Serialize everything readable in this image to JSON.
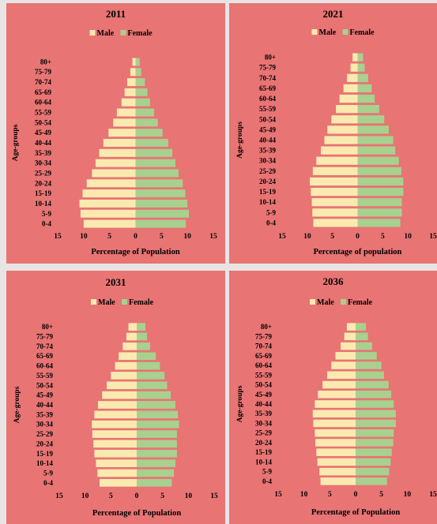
{
  "colors": {
    "male": "#fbeab0",
    "female": "#a8d08f",
    "background": "#e87474"
  },
  "chart_data": [
    {
      "type": "bar",
      "orientation": "horizontal-population-pyramid",
      "title": "2011",
      "xlabel": "Percentage of Population",
      "ylabel": "Age-groups",
      "legend": [
        "Male",
        "Female"
      ],
      "legend_position": "top",
      "xlim": [
        -15,
        15
      ],
      "xticks": [
        "15",
        "10",
        "5",
        "0",
        "5",
        "10",
        "15"
      ],
      "categories": [
        "0-4",
        "5-9",
        "10-14",
        "15-19",
        "20-24",
        "25-29",
        "30-34",
        "35-39",
        "40-44",
        "45-49",
        "50-54",
        "55-59",
        "60-64",
        "65-69",
        "70-74",
        "75-79",
        "80+"
      ],
      "series": [
        {
          "name": "Male",
          "values": [
            10.0,
            10.6,
            10.8,
            10.2,
            9.4,
            8.4,
            7.7,
            7.0,
            6.2,
            5.2,
            4.3,
            3.6,
            2.7,
            2.1,
            1.6,
            1.0,
            0.6
          ]
        },
        {
          "name": "Female",
          "values": [
            9.7,
            10.3,
            10.0,
            9.6,
            9.1,
            8.3,
            7.7,
            7.1,
            6.3,
            5.2,
            4.3,
            3.6,
            2.8,
            2.3,
            1.8,
            1.1,
            0.8
          ]
        }
      ]
    },
    {
      "type": "bar",
      "orientation": "horizontal-population-pyramid",
      "title": "2021",
      "xlabel": "Percentage of population",
      "ylabel": "Age-groups",
      "legend": [
        "Male",
        "Female"
      ],
      "legend_position": "top",
      "xlim": [
        -15,
        15
      ],
      "xticks": [
        "15",
        "10",
        "5",
        "0",
        "5",
        "10",
        "15"
      ],
      "categories": [
        "0-4",
        "5-9",
        "10-14",
        "15-19",
        "20-24",
        "25-29",
        "30-34",
        "35-39",
        "40-44",
        "45-49",
        "50-54",
        "55-59",
        "60-64",
        "65-69",
        "70-74",
        "75-79",
        "80+"
      ],
      "series": [
        {
          "name": "Male",
          "values": [
            8.8,
            9.0,
            9.1,
            9.3,
            9.5,
            8.9,
            8.2,
            7.3,
            6.6,
            6.0,
            5.2,
            4.3,
            3.6,
            2.8,
            2.1,
            1.4,
            1.0
          ]
        },
        {
          "name": "Female",
          "values": [
            8.5,
            8.8,
            8.8,
            9.1,
            9.1,
            8.7,
            8.2,
            7.5,
            7.1,
            6.2,
            5.3,
            4.3,
            3.4,
            2.8,
            2.1,
            1.4,
            1.1
          ]
        }
      ]
    },
    {
      "type": "bar",
      "orientation": "horizontal-population-pyramid",
      "title": "2031",
      "xlabel": "Percentage of Population",
      "ylabel": "Age-groups",
      "legend": [
        "Male",
        "Female"
      ],
      "legend_position": "top",
      "xlim": [
        -15,
        15
      ],
      "xticks": [
        "15",
        "10",
        "5",
        "0",
        "5",
        "10",
        "15"
      ],
      "categories": [
        "0-4",
        "5-9",
        "10-14",
        "15-19",
        "20-24",
        "25-29",
        "30-34",
        "35-39",
        "40-44",
        "45-49",
        "50-54",
        "55-59",
        "60-64",
        "65-69",
        "70-74",
        "75-79",
        "80+"
      ],
      "series": [
        {
          "name": "Male",
          "values": [
            7.2,
            7.6,
            7.9,
            8.2,
            8.4,
            8.6,
            8.7,
            8.2,
            7.5,
            6.7,
            5.8,
            5.0,
            4.2,
            3.5,
            2.7,
            2.0,
            1.6
          ]
        },
        {
          "name": "Female",
          "values": [
            6.8,
            7.2,
            7.5,
            7.8,
            7.8,
            7.8,
            8.2,
            8.0,
            7.5,
            6.6,
            5.9,
            5.4,
            4.5,
            3.7,
            2.6,
            2.0,
            1.7
          ]
        }
      ]
    },
    {
      "type": "bar",
      "orientation": "horizontal-population-pyramid",
      "title": "2036",
      "xlabel": "Percentage of Population",
      "ylabel": "Age-groups",
      "legend": [
        "Male",
        "Female"
      ],
      "legend_position": "top",
      "xlim": [
        -15,
        15
      ],
      "xticks": [
        "15",
        "10",
        "5",
        "0",
        "5",
        "10",
        "15"
      ],
      "categories": [
        "0-4",
        "5-9",
        "10-14",
        "15-19",
        "20-24",
        "25-29",
        "30-34",
        "35-39",
        "40-44",
        "45-49",
        "50-54",
        "55-59",
        "60-64",
        "65-69",
        "70-74",
        "75-79",
        "80+"
      ],
      "series": [
        {
          "name": "Male",
          "values": [
            6.8,
            7.0,
            7.4,
            7.6,
            7.8,
            7.9,
            8.2,
            8.3,
            7.9,
            7.3,
            6.4,
            5.5,
            4.7,
            3.9,
            2.9,
            2.2,
            1.7
          ]
        },
        {
          "name": "Female",
          "values": [
            6.1,
            6.5,
            6.8,
            7.0,
            7.3,
            7.4,
            7.8,
            7.8,
            7.4,
            6.9,
            6.4,
            5.5,
            5.0,
            4.1,
            3.2,
            2.4,
            2.0
          ]
        }
      ]
    }
  ]
}
